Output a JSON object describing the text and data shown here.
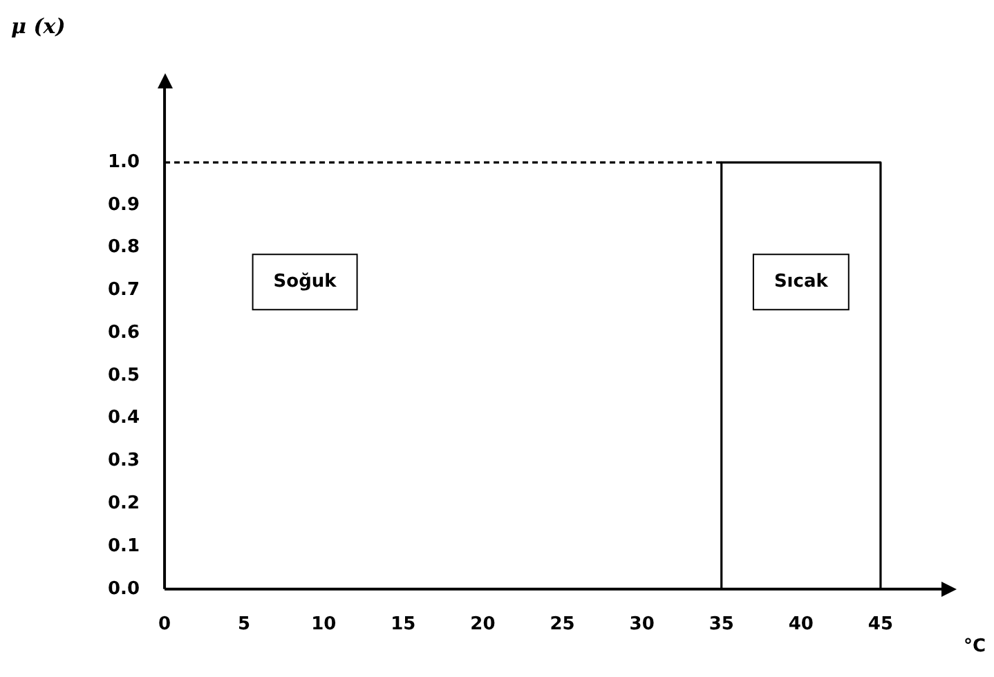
{
  "chart_data": {
    "type": "line",
    "ylabel": "μ (x)",
    "xlabel": "°C",
    "xlim": [
      0,
      49
    ],
    "ylim": [
      0,
      1.18
    ],
    "xticks": [
      0,
      5,
      10,
      15,
      20,
      25,
      30,
      35,
      40,
      45
    ],
    "yticks": [
      {
        "value": 0,
        "label": "0.0"
      },
      0.1,
      0.2,
      0.3,
      0.4,
      0.5,
      0.6,
      0.7,
      0.8,
      0.9,
      {
        "value": 1,
        "label": "1.0"
      }
    ],
    "annotations": [
      "Soğuk",
      "Sıcak"
    ],
    "grid": false,
    "legend": false,
    "marker": "none",
    "series": [
      {
        "color": "#000000",
        "x": [
          0,
          35
        ],
        "values": [
          1,
          1
        ],
        "line_style": "dashed"
      },
      {
        "color": "#000000",
        "x": [
          35,
          35,
          45,
          45
        ],
        "values": [
          0,
          1,
          1,
          0
        ],
        "line_style": "solid"
      }
    ]
  }
}
